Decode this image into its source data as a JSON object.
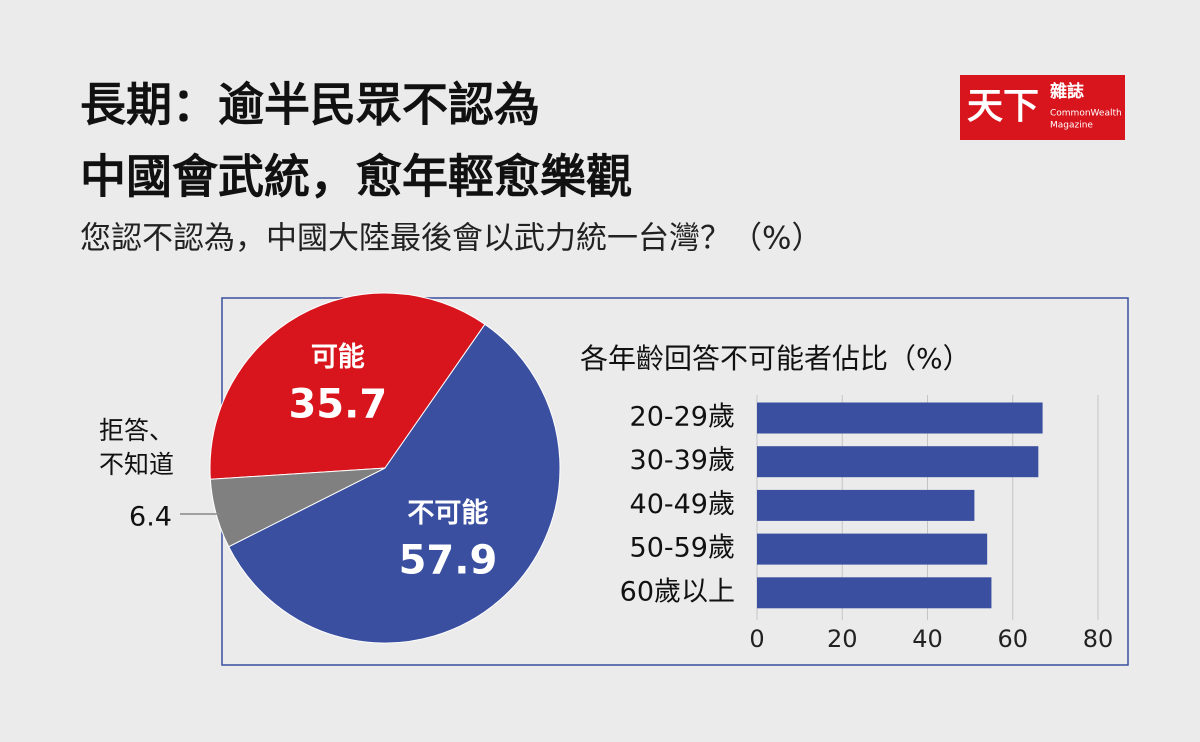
{
  "header": {
    "title_lines": [
      "長期：逾半民眾不認為",
      "中國會武統，愈年輕愈樂觀"
    ],
    "subtitle": "您認不認為，中國大陸最後會以武力統一台灣？（%）",
    "logo": {
      "main": "天下",
      "side": "雜誌",
      "english_lines": [
        "CommonWealth",
        "Magazine"
      ]
    }
  },
  "chart_data": [
    {
      "type": "pie",
      "categories": [
        "可能",
        "不可能",
        "拒答、不知道"
      ],
      "values": [
        35.7,
        57.9,
        6.4
      ],
      "value_labels": [
        "35.7",
        "57.9",
        "6.4"
      ],
      "colors": [
        "#d8141c",
        "#3a4fa0",
        "#808080"
      ]
    },
    {
      "type": "hbar",
      "title": "各年齡回答不可能者佔比（%）",
      "categories": [
        "20-29歲",
        "30-39歲",
        "40-49歲",
        "50-59歲",
        "60歲以上"
      ],
      "values": [
        67,
        66,
        51,
        54,
        55
      ],
      "color": "#3a4fa0",
      "xlim": [
        0,
        80
      ],
      "xticks": [
        0,
        20,
        40,
        60,
        80
      ],
      "grid": true
    }
  ]
}
